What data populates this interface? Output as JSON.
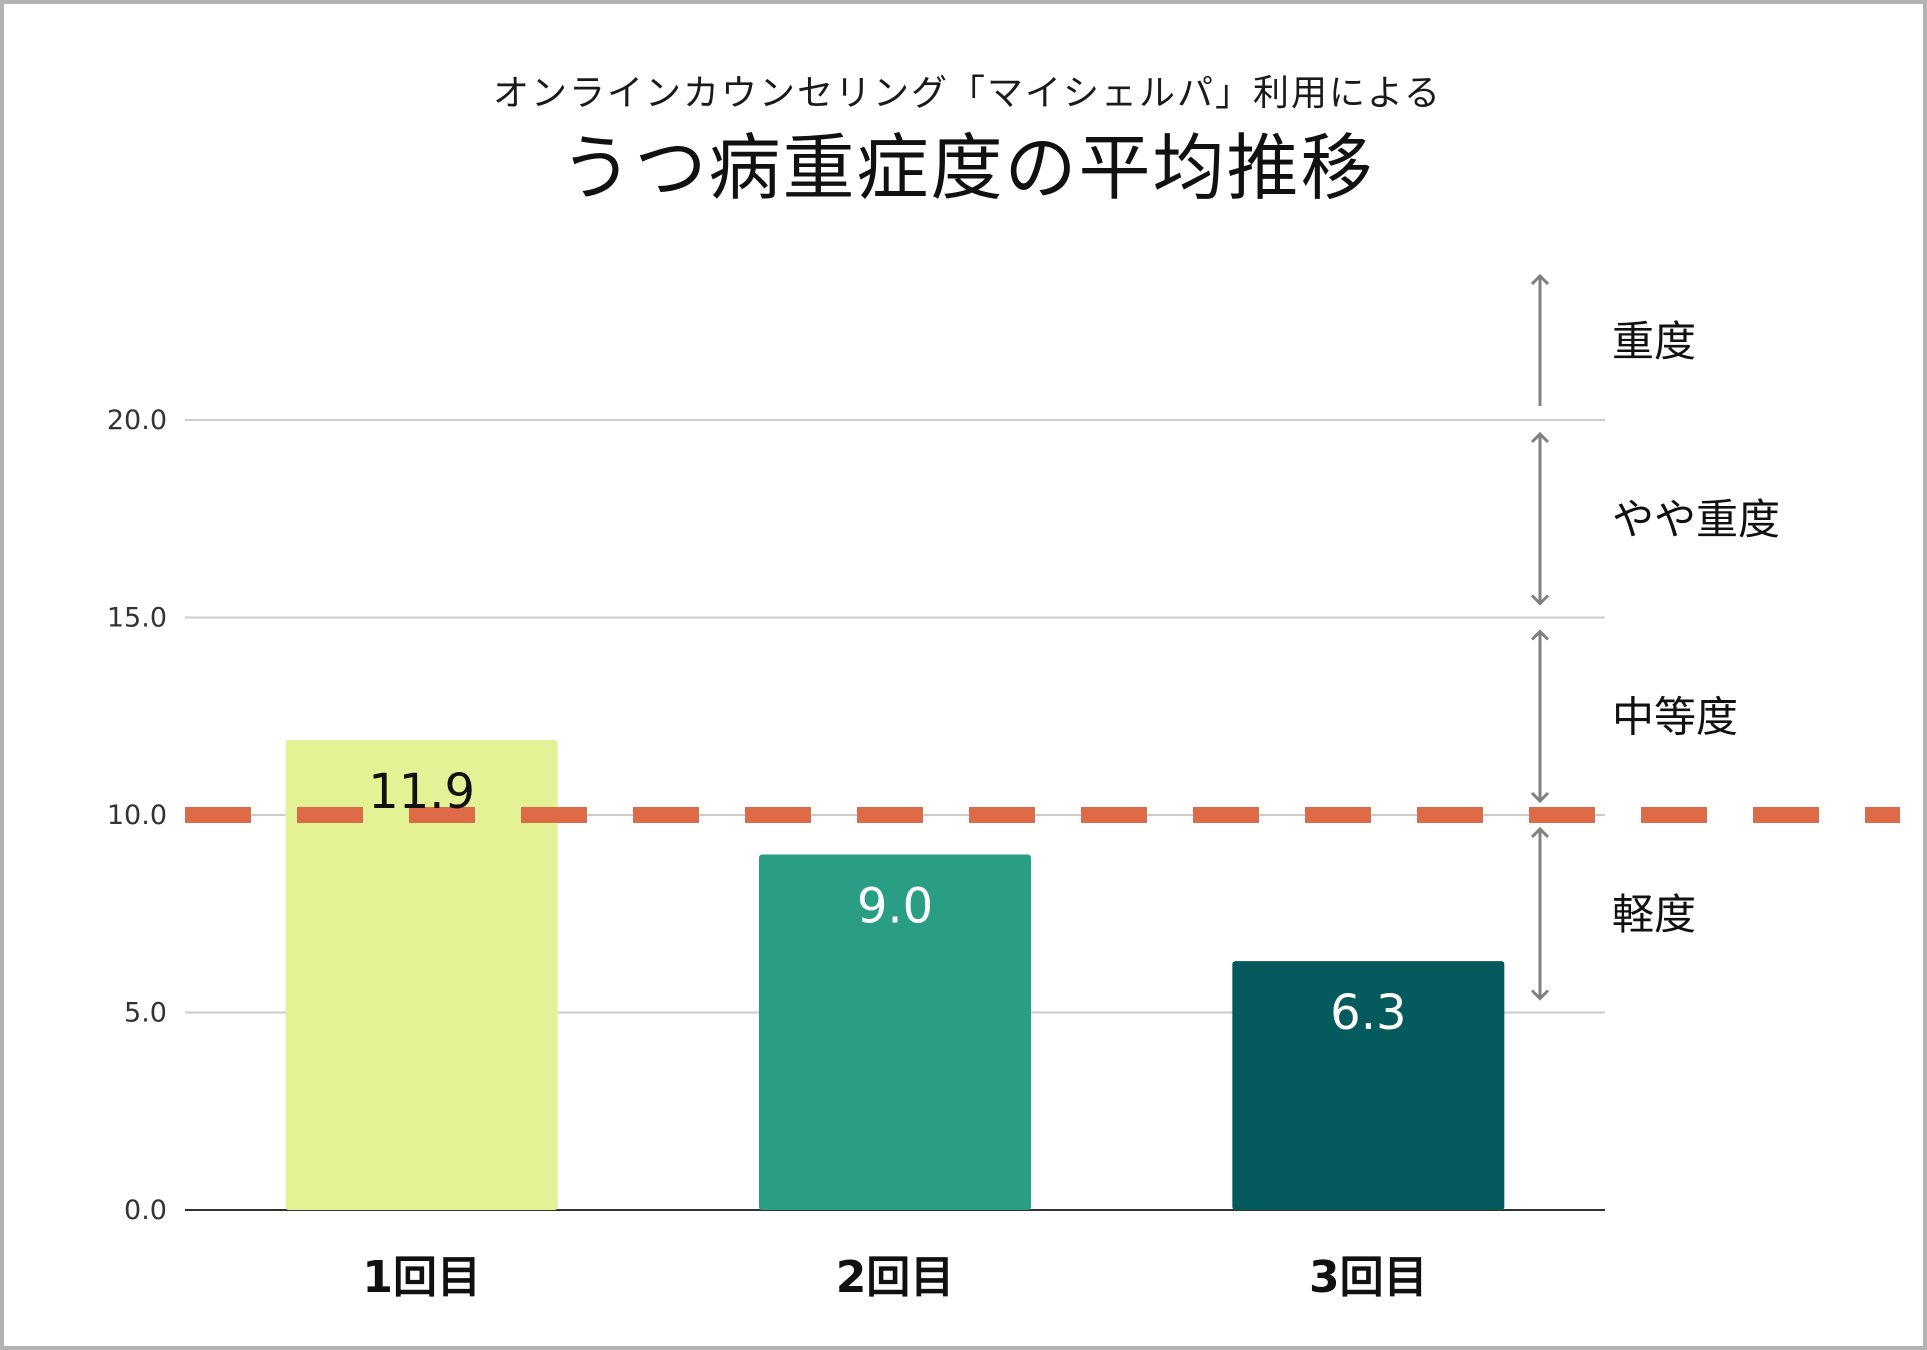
{
  "chart_data": {
    "type": "bar",
    "subtitle": "オンラインカウンセリング「マイシェルパ」利用による",
    "title": "うつ病重症度の平均推移",
    "categories": [
      "1回目",
      "2回目",
      "3回目"
    ],
    "values": [
      11.9,
      9.0,
      6.3
    ],
    "value_labels": [
      "11.9",
      "9.0",
      "6.3"
    ],
    "bar_colors": [
      "#e2f294",
      "#299e85",
      "#045a5c"
    ],
    "label_colors": [
      "#111111",
      "#ffffff",
      "#ffffff"
    ],
    "ylim": [
      0,
      20
    ],
    "yticks": [
      0,
      5,
      10,
      15,
      20
    ],
    "ytick_labels": [
      "0.0",
      "5.0",
      "10.0",
      "15.0",
      "20.0"
    ],
    "ylabel": "",
    "xlabel": "",
    "grid": true,
    "threshold": {
      "value": 10,
      "color": "#de6a48",
      "style": "dashed"
    },
    "severity_bands": [
      {
        "label": "軽度",
        "from": 5,
        "to": 10
      },
      {
        "label": "中等度",
        "from": 10,
        "to": 15
      },
      {
        "label": "やや重度",
        "from": 15,
        "to": 20
      },
      {
        "label": "重度",
        "from": 20,
        "to": 24
      }
    ]
  }
}
